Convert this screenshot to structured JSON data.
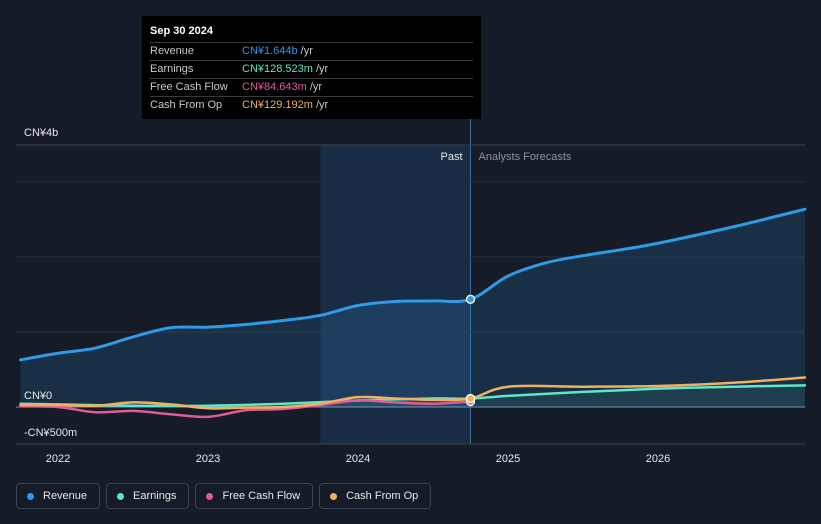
{
  "tooltip": {
    "date": "Sep 30 2024",
    "rows": [
      {
        "label": "Revenue",
        "value": "CN¥1.644b",
        "unit": "/yr",
        "color": "#2f9ae5"
      },
      {
        "label": "Earnings",
        "value": "CN¥128.523m",
        "unit": "/yr",
        "color": "#5ee6c8"
      },
      {
        "label": "Free Cash Flow",
        "value": "CN¥84.643m",
        "unit": "/yr",
        "color": "#e05a9a"
      },
      {
        "label": "Cash From Op",
        "value": "CN¥129.192m",
        "unit": "/yr",
        "color": "#f0b060"
      }
    ]
  },
  "chart_data": {
    "type": "line",
    "y_unit": "CN¥ billions",
    "ylim": [
      -0.5,
      4.0
    ],
    "y_tick_labels": [
      {
        "value": 4.0,
        "label": "CN¥4b"
      },
      {
        "value": 0,
        "label": "CN¥0"
      },
      {
        "value": -0.5,
        "label": "-CN¥500m"
      }
    ],
    "xlim": [
      2021.72,
      2026.98
    ],
    "x_ticks": [
      2022,
      2023,
      2024,
      2025,
      2026
    ],
    "x_tick_labels": [
      "2022",
      "2023",
      "2024",
      "2025",
      "2026"
    ],
    "past_forecast_divider": 2024.75,
    "highlight_start": 2023.75,
    "region_labels": {
      "past": "Past",
      "forecast": "Analysts Forecasts"
    },
    "grid": true,
    "series": [
      {
        "name": "Revenue",
        "color": "#2f9ae5",
        "area": true,
        "points": [
          [
            2021.75,
            0.72
          ],
          [
            2022.0,
            0.82
          ],
          [
            2022.25,
            0.9
          ],
          [
            2022.5,
            1.07
          ],
          [
            2022.75,
            1.21
          ],
          [
            2023.0,
            1.22
          ],
          [
            2023.25,
            1.26
          ],
          [
            2023.5,
            1.32
          ],
          [
            2023.75,
            1.4
          ],
          [
            2024.0,
            1.55
          ],
          [
            2024.25,
            1.61
          ],
          [
            2024.5,
            1.62
          ],
          [
            2024.75,
            1.644
          ],
          [
            2025.0,
            2.0
          ],
          [
            2025.25,
            2.2
          ],
          [
            2025.5,
            2.31
          ],
          [
            2025.75,
            2.4
          ],
          [
            2026.0,
            2.5
          ],
          [
            2026.5,
            2.75
          ],
          [
            2026.98,
            3.02
          ]
        ]
      },
      {
        "name": "Earnings",
        "color": "#5ee6c8",
        "area": false,
        "points": [
          [
            2021.75,
            0.05
          ],
          [
            2022.0,
            0.04
          ],
          [
            2022.5,
            0.02
          ],
          [
            2023.0,
            0.02
          ],
          [
            2023.5,
            0.05
          ],
          [
            2024.0,
            0.1
          ],
          [
            2024.5,
            0.13
          ],
          [
            2024.75,
            0.1285
          ],
          [
            2025.0,
            0.17
          ],
          [
            2025.5,
            0.23
          ],
          [
            2026.0,
            0.28
          ],
          [
            2026.5,
            0.31
          ],
          [
            2026.98,
            0.33
          ]
        ]
      },
      {
        "name": "Free Cash Flow",
        "color": "#e05a9a",
        "area": false,
        "points": [
          [
            2021.75,
            0.01
          ],
          [
            2022.0,
            0.0
          ],
          [
            2022.25,
            -0.08
          ],
          [
            2022.5,
            -0.06
          ],
          [
            2022.75,
            -0.11
          ],
          [
            2023.0,
            -0.15
          ],
          [
            2023.25,
            -0.05
          ],
          [
            2023.5,
            -0.03
          ],
          [
            2023.75,
            0.03
          ],
          [
            2024.0,
            0.1
          ],
          [
            2024.25,
            0.07
          ],
          [
            2024.5,
            0.05
          ],
          [
            2024.75,
            0.0846
          ]
        ]
      },
      {
        "name": "Cash From Op",
        "color": "#f0b060",
        "area": false,
        "points": [
          [
            2021.75,
            0.03
          ],
          [
            2022.0,
            0.03
          ],
          [
            2022.25,
            0.02
          ],
          [
            2022.5,
            0.07
          ],
          [
            2022.75,
            0.04
          ],
          [
            2023.0,
            -0.02
          ],
          [
            2023.25,
            -0.01
          ],
          [
            2023.5,
            0.0
          ],
          [
            2023.75,
            0.05
          ],
          [
            2024.0,
            0.15
          ],
          [
            2024.25,
            0.13
          ],
          [
            2024.5,
            0.11
          ],
          [
            2024.75,
            0.1292
          ],
          [
            2025.0,
            0.31
          ],
          [
            2025.5,
            0.31
          ],
          [
            2026.0,
            0.32
          ],
          [
            2026.5,
            0.37
          ],
          [
            2026.98,
            0.45
          ]
        ]
      }
    ]
  },
  "legend": [
    {
      "label": "Revenue",
      "color": "#2f9ae5"
    },
    {
      "label": "Earnings",
      "color": "#5ee6c8"
    },
    {
      "label": "Free Cash Flow",
      "color": "#e05a9a"
    },
    {
      "label": "Cash From Op",
      "color": "#f0b060"
    }
  ]
}
